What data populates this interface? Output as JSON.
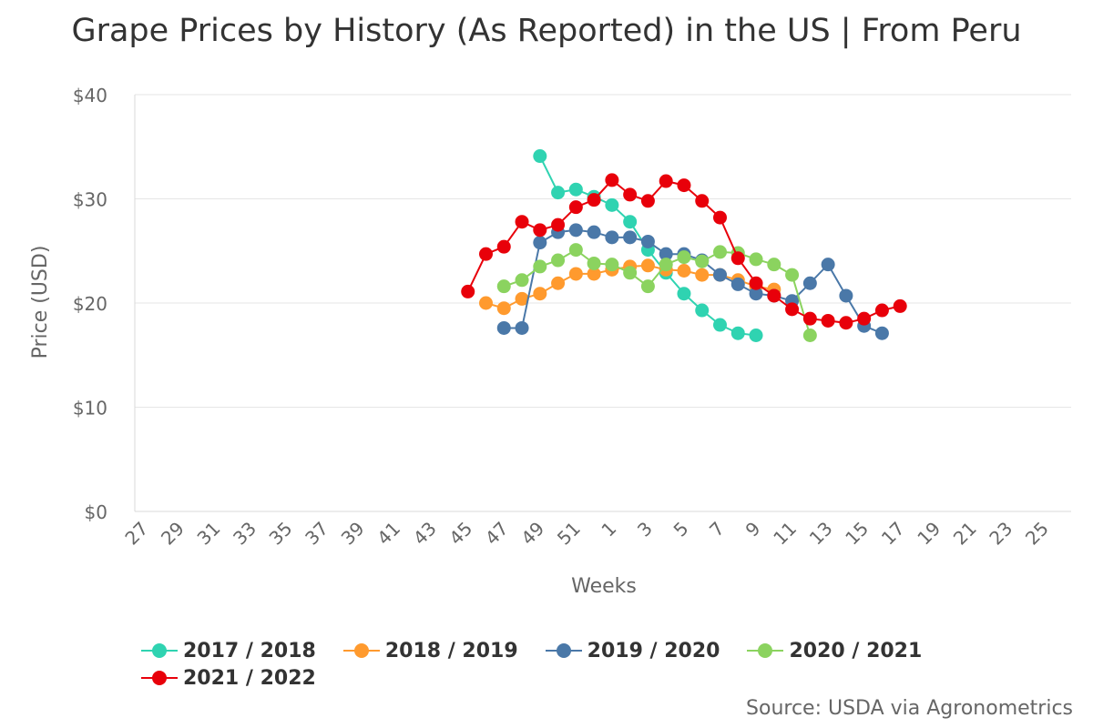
{
  "title": "Grape Prices by History (As Reported) in the US | From Peru",
  "source": "Source: USDA via Agronometrics",
  "chart_data": {
    "type": "line",
    "title": "Grape Prices by History (As Reported) in the US | From Peru",
    "xlabel": "Weeks",
    "ylabel": "Price (USD)",
    "ylim": [
      0,
      40
    ],
    "y_ticks": [
      "$0",
      "$10",
      "$20",
      "$30",
      "$40"
    ],
    "y_tick_values": [
      0,
      10,
      20,
      30,
      40
    ],
    "categories": [
      "27",
      "28",
      "29",
      "30",
      "31",
      "32",
      "33",
      "34",
      "35",
      "36",
      "37",
      "38",
      "39",
      "40",
      "41",
      "42",
      "43",
      "44",
      "45",
      "46",
      "47",
      "48",
      "49",
      "50",
      "51",
      "52",
      "1",
      "2",
      "3",
      "4",
      "5",
      "6",
      "7",
      "8",
      "9",
      "10",
      "11",
      "12",
      "13",
      "14",
      "15",
      "16",
      "17",
      "18",
      "19",
      "20",
      "21",
      "22",
      "23",
      "24",
      "25",
      "26"
    ],
    "x_tick_labels": [
      "27",
      "29",
      "31",
      "33",
      "35",
      "37",
      "39",
      "41",
      "43",
      "45",
      "47",
      "49",
      "51",
      "1",
      "3",
      "5",
      "7",
      "9",
      "11",
      "13",
      "15",
      "17",
      "19",
      "21",
      "23",
      "25"
    ],
    "grid": "horizontal",
    "legend_position": "bottom",
    "series": [
      {
        "name": "2017 / 2018",
        "color": "#2fd3b1",
        "values": [
          null,
          null,
          null,
          null,
          null,
          null,
          null,
          null,
          null,
          null,
          null,
          null,
          null,
          null,
          null,
          null,
          null,
          null,
          null,
          null,
          null,
          null,
          34.1,
          30.6,
          30.9,
          30.2,
          29.4,
          27.8,
          25.1,
          22.9,
          20.9,
          19.3,
          17.9,
          17.1,
          16.9,
          null,
          null,
          null,
          null,
          null,
          null,
          null,
          null,
          null,
          null,
          null,
          null,
          null,
          null,
          null,
          null,
          null
        ]
      },
      {
        "name": "2018 / 2019",
        "color": "#ff9a2e",
        "values": [
          null,
          null,
          null,
          null,
          null,
          null,
          null,
          null,
          null,
          null,
          null,
          null,
          null,
          null,
          null,
          null,
          null,
          null,
          null,
          20.0,
          19.5,
          20.4,
          20.9,
          21.9,
          22.8,
          22.8,
          23.2,
          23.5,
          23.6,
          23.2,
          23.1,
          22.7,
          22.7,
          22.2,
          21.6,
          21.3,
          null,
          null,
          null,
          null,
          null,
          null,
          null,
          null,
          null,
          null,
          null,
          null,
          null,
          null,
          null,
          null
        ]
      },
      {
        "name": "2019 / 2020",
        "color": "#4a78a8",
        "values": [
          null,
          null,
          null,
          null,
          null,
          null,
          null,
          null,
          null,
          null,
          null,
          null,
          null,
          null,
          null,
          null,
          null,
          null,
          null,
          null,
          17.6,
          17.6,
          25.8,
          26.8,
          27.0,
          26.8,
          26.3,
          26.3,
          25.9,
          24.7,
          24.7,
          24.1,
          22.7,
          21.8,
          20.9,
          20.7,
          20.2,
          21.9,
          23.7,
          20.7,
          17.8,
          17.1,
          null,
          null,
          null,
          null,
          null,
          null,
          null,
          null,
          null,
          null
        ]
      },
      {
        "name": "2020 / 2021",
        "color": "#8bd35f",
        "values": [
          null,
          null,
          null,
          null,
          null,
          null,
          null,
          null,
          null,
          null,
          null,
          null,
          null,
          null,
          null,
          null,
          null,
          null,
          null,
          null,
          21.6,
          22.2,
          23.5,
          24.1,
          25.1,
          23.8,
          23.7,
          22.9,
          21.6,
          23.7,
          24.4,
          24.0,
          24.9,
          24.8,
          24.2,
          23.7,
          22.7,
          16.9,
          null,
          null,
          null,
          null,
          null,
          null,
          null,
          null,
          null,
          null,
          null,
          null,
          null,
          null
        ]
      },
      {
        "name": "2021 / 2022",
        "color": "#e8000a",
        "values": [
          null,
          null,
          null,
          null,
          null,
          null,
          null,
          null,
          null,
          null,
          null,
          null,
          null,
          null,
          null,
          null,
          null,
          null,
          21.1,
          24.7,
          25.4,
          27.8,
          27.0,
          27.5,
          29.2,
          29.9,
          31.8,
          30.4,
          29.8,
          31.7,
          31.3,
          29.8,
          28.2,
          24.3,
          21.9,
          20.7,
          19.4,
          18.5,
          18.3,
          18.1,
          18.5,
          19.3,
          19.7,
          null,
          null,
          null,
          null,
          null,
          null,
          null,
          null,
          null
        ]
      }
    ]
  }
}
